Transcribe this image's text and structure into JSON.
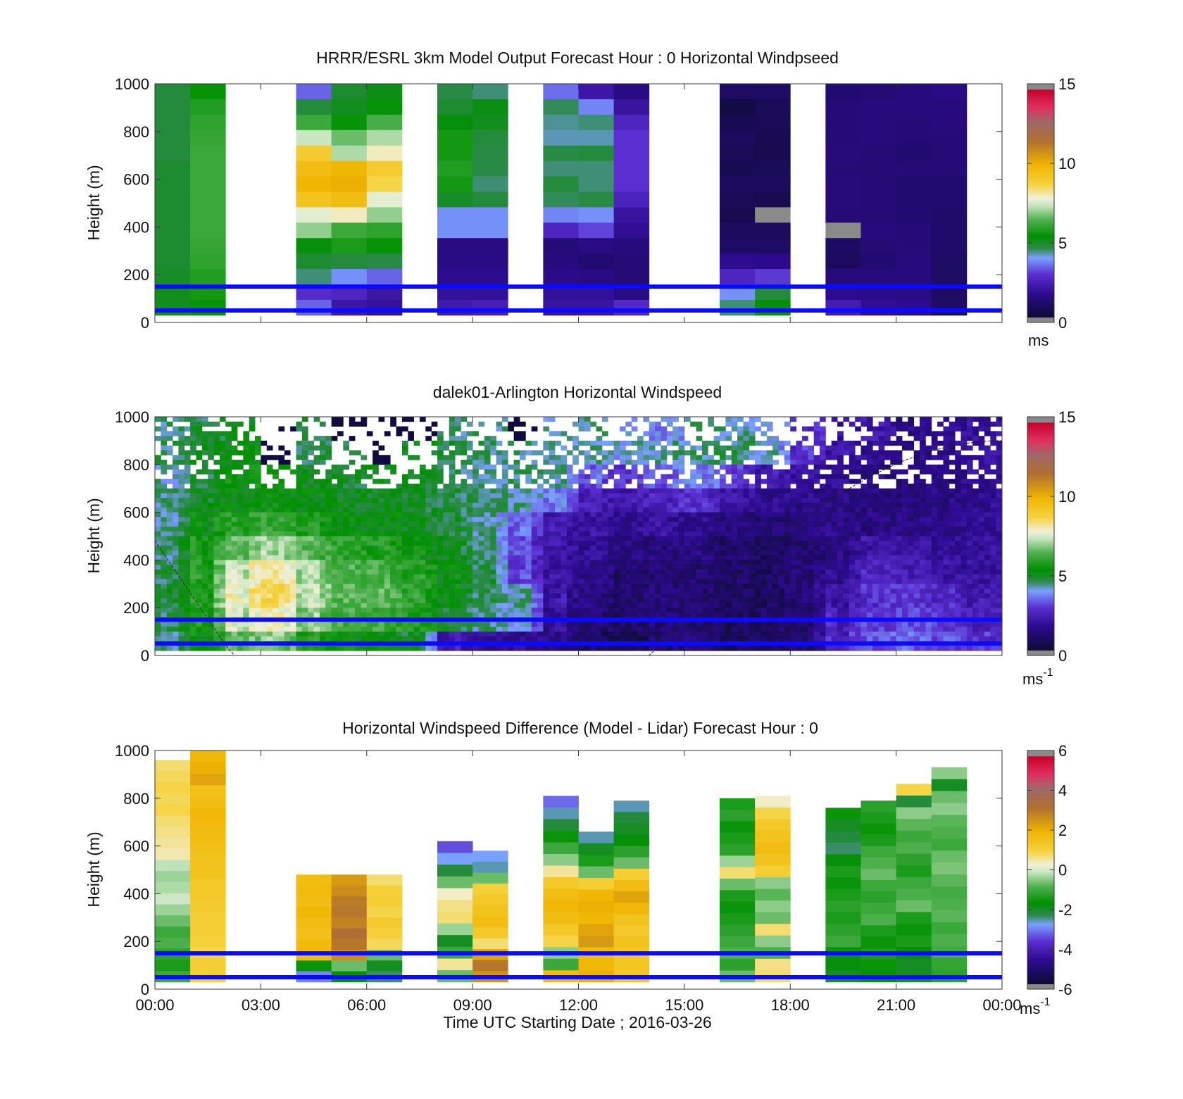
{
  "figure": {
    "x_tick_labels": [
      "00:00",
      "03:00",
      "06:00",
      "09:00",
      "12:00",
      "15:00",
      "18:00",
      "21:00",
      "00:00"
    ],
    "xlabel": "Time UTC  Starting Date ; 2016-03-26"
  },
  "chart_data": [
    {
      "type": "heatmap",
      "title": "HRRR/ESRL 3km Model Output   Forecast Hour : 0 Horizontal Windpseed",
      "ylabel": "Height (m)",
      "ylim": [
        0,
        1000
      ],
      "y_ticks": [
        "0",
        "200",
        "400",
        "600",
        "800",
        "1000"
      ],
      "xlim_hours": [
        0,
        24
      ],
      "colorbar": {
        "min": 0,
        "max": 15,
        "ticks": [
          "0",
          "5",
          "10",
          "15"
        ],
        "unit": "ms"
      },
      "reference_lines_m": [
        50,
        150
      ],
      "line_color": "#0a0aff",
      "columns": [
        {
          "t": 0,
          "top": 1000,
          "bottom": 30,
          "values": [
            4.5,
            4.5,
            4.5,
            4.5,
            4.5,
            4.6,
            4.6,
            4.6,
            4.6,
            4.6,
            4.6,
            4.6,
            4.7,
            4.8,
            4.8
          ]
        },
        {
          "t": 1,
          "top": 1000,
          "bottom": 30,
          "values": [
            5.2,
            5.6,
            5.8,
            5.9,
            6.0,
            6.0,
            6.0,
            6.0,
            6.0,
            6.0,
            5.9,
            5.8,
            5.6,
            5.4,
            5.2
          ]
        },
        {
          "t": 4,
          "top": 1000,
          "bottom": 30,
          "values": [
            3.2,
            4.5,
            6.0,
            7.2,
            8.8,
            9.5,
            9.8,
            9.2,
            7.5,
            6.8,
            5.0,
            4.6,
            4.2,
            2.6,
            3.2
          ]
        },
        {
          "t": 5,
          "top": 1000,
          "bottom": 30,
          "values": [
            4.6,
            4.8,
            5.2,
            6.5,
            7.0,
            9.8,
            10.0,
            9.5,
            7.8,
            6.0,
            5.5,
            4.5,
            3.6,
            2.4,
            1.9
          ]
        },
        {
          "t": 6,
          "top": 1000,
          "bottom": 30,
          "values": [
            4.9,
            5.2,
            6.2,
            7.0,
            7.8,
            8.8,
            8.5,
            7.5,
            6.8,
            5.8,
            5.2,
            4.4,
            3.2,
            1.9,
            1.7
          ]
        },
        {
          "t": 8,
          "top": 1000,
          "bottom": 30,
          "values": [
            4.4,
            4.6,
            5.0,
            5.4,
            5.4,
            5.6,
            5.4,
            4.7,
            3.6,
            3.6,
            1.3,
            1.3,
            1.5,
            1.7,
            2.0
          ]
        },
        {
          "t": 9,
          "top": 1000,
          "bottom": 30,
          "values": [
            4.2,
            4.9,
            4.8,
            4.5,
            4.4,
            4.4,
            4.2,
            4.5,
            3.6,
            3.6,
            1.3,
            1.3,
            1.5,
            1.7,
            2.2
          ]
        },
        {
          "t": 11,
          "top": 1000,
          "bottom": 30,
          "values": [
            3.3,
            4.3,
            4.1,
            4.0,
            4.4,
            4.2,
            4.5,
            4.3,
            3.5,
            2.4,
            1.1,
            1.2,
            1.4,
            1.7,
            1.8
          ]
        },
        {
          "t": 12,
          "top": 1000,
          "bottom": 30,
          "values": [
            1.9,
            3.5,
            4.2,
            4.0,
            4.5,
            4.2,
            4.2,
            4.4,
            3.6,
            2.9,
            1.3,
            1.0,
            1.3,
            1.7,
            1.8
          ]
        },
        {
          "t": 13,
          "top": 1000,
          "bottom": 30,
          "values": [
            1.3,
            1.8,
            2.4,
            2.7,
            2.7,
            2.7,
            2.7,
            2.3,
            1.8,
            1.6,
            1.2,
            1.1,
            1.1,
            1.3,
            2.5
          ]
        },
        {
          "t": 16,
          "top": 1000,
          "bottom": 30,
          "values": [
            0.8,
            0.3,
            0.5,
            0.7,
            0.6,
            0.5,
            0.7,
            0.6,
            0.5,
            0.7,
            0.8,
            1.5,
            2.4,
            3.6,
            4.2
          ]
        },
        {
          "t": 17,
          "top": 1000,
          "bottom": 30,
          "values": [
            0.8,
            0.6,
            0.6,
            0.5,
            0.5,
            0.6,
            0.7,
            0.5,
            -1,
            0.7,
            0.8,
            1.4,
            2.8,
            4.5,
            5.0
          ]
        },
        {
          "t": 19,
          "top": 1000,
          "bottom": 30,
          "values": [
            1.0,
            1.1,
            1.1,
            1.1,
            1.2,
            1.1,
            1.2,
            1.2,
            1.1,
            -1,
            0.8,
            0.7,
            1.2,
            1.5,
            2.1
          ]
        },
        {
          "t": 20,
          "top": 1000,
          "bottom": 30,
          "values": [
            1.1,
            1.2,
            1.2,
            1.2,
            1.1,
            1.1,
            1.1,
            1.1,
            1.1,
            1.2,
            1.1,
            1.0,
            1.2,
            1.4,
            1.6
          ]
        },
        {
          "t": 21,
          "top": 1000,
          "bottom": 30,
          "values": [
            1.2,
            1.2,
            1.1,
            1.1,
            1.0,
            1.1,
            1.0,
            1.0,
            1.0,
            1.1,
            1.1,
            1.2,
            1.2,
            1.3,
            1.5
          ]
        },
        {
          "t": 22,
          "top": 1000,
          "bottom": 30,
          "values": [
            1.3,
            1.2,
            1.2,
            1.1,
            1.1,
            1.1,
            1.0,
            1.0,
            0.9,
            0.9,
            0.9,
            0.8,
            0.8,
            0.8,
            0.8
          ]
        }
      ]
    },
    {
      "type": "heatmap",
      "title": "dalek01-Arlington  Horizontal Windspeed",
      "ylabel": "Height (m)",
      "ylim": [
        0,
        1000
      ],
      "y_ticks": [
        "0",
        "200",
        "400",
        "600",
        "800",
        "1000"
      ],
      "xlim_hours": [
        0,
        24
      ],
      "colorbar": {
        "min": 0,
        "max": 15,
        "ticks": [
          "0",
          "5",
          "10",
          "15"
        ],
        "unit": "ms",
        "unit_exponent": "-1"
      },
      "reference_lines_m": [
        50,
        150
      ],
      "line_color": "#0a0aff",
      "time_hours": [
        0,
        1,
        2,
        3,
        4,
        5,
        6,
        7,
        8,
        9,
        10,
        11,
        12,
        13,
        14,
        15,
        16,
        17,
        18,
        19,
        20,
        21,
        22,
        23
      ],
      "heights_m": [
        950,
        850,
        750,
        650,
        550,
        450,
        350,
        250,
        150,
        50
      ],
      "speed_grid": [
        [
          4.2,
          4.5,
          -9,
          -9,
          -9,
          -9,
          -9,
          -9,
          4.2,
          -9,
          -9,
          -9,
          -9,
          -9,
          3.5,
          -9,
          4.0,
          -9,
          -9,
          -9,
          2.0,
          1.2,
          1.5,
          1.8
        ],
        [
          4.3,
          4.8,
          5.0,
          -9,
          4.5,
          -9,
          -9,
          -9,
          4.5,
          4.2,
          -9,
          4.0,
          4.2,
          3.8,
          4.0,
          4.2,
          4.3,
          3.8,
          2.5,
          1.8,
          1.5,
          1.2,
          1.4,
          1.8
        ],
        [
          4.0,
          4.6,
          5.2,
          -9,
          4.8,
          4.6,
          -9,
          4.8,
          4.4,
          4.0,
          4.2,
          4.0,
          2.8,
          2.6,
          3.2,
          3.5,
          2.8,
          2.0,
          1.7,
          1.5,
          1.3,
          1.1,
          1.3,
          1.6
        ],
        [
          4.2,
          4.8,
          5.0,
          5.2,
          5.0,
          4.8,
          4.8,
          4.6,
          4.5,
          4.2,
          4.0,
          3.4,
          2.2,
          2.0,
          2.4,
          2.6,
          1.8,
          1.5,
          1.4,
          1.3,
          1.2,
          1.2,
          1.3,
          1.5
        ],
        [
          4.0,
          5.2,
          5.8,
          6.0,
          5.5,
          5.0,
          5.0,
          4.8,
          4.6,
          4.0,
          3.2,
          2.0,
          1.8,
          1.5,
          1.8,
          1.4,
          1.2,
          1.0,
          1.2,
          1.4,
          1.2,
          1.3,
          1.4,
          1.6
        ],
        [
          4.2,
          5.6,
          6.5,
          7.0,
          6.2,
          5.8,
          5.6,
          5.2,
          4.8,
          4.2,
          2.8,
          1.8,
          1.6,
          1.2,
          1.2,
          1.2,
          0.9,
          0.8,
          1.0,
          1.3,
          2.0,
          1.8,
          1.6,
          1.7
        ],
        [
          4.4,
          5.8,
          7.5,
          8.2,
          6.8,
          6.0,
          6.2,
          5.6,
          5.0,
          4.4,
          2.6,
          1.8,
          1.4,
          0.9,
          1.0,
          1.0,
          0.8,
          0.8,
          1.2,
          1.6,
          2.4,
          2.2,
          1.8,
          1.8
        ],
        [
          4.6,
          5.8,
          8.0,
          8.5,
          7.0,
          6.2,
          6.4,
          5.8,
          5.0,
          4.2,
          4.0,
          1.5,
          1.2,
          0.9,
          1.2,
          1.0,
          0.7,
          0.7,
          1.1,
          2.0,
          2.6,
          2.8,
          2.4,
          2.0
        ],
        [
          4.4,
          5.6,
          7.5,
          7.8,
          6.6,
          6.0,
          6.0,
          5.5,
          4.6,
          4.0,
          3.8,
          1.4,
          1.0,
          0.8,
          1.1,
          1.0,
          0.7,
          0.8,
          1.0,
          2.4,
          2.8,
          3.0,
          2.7,
          2.2
        ],
        [
          4.2,
          5.2,
          6.5,
          6.8,
          5.5,
          5.2,
          5.0,
          4.6,
          1.8,
          1.6,
          1.5,
          1.4,
          0.8,
          0.5,
          1.0,
          1.2,
          0.6,
          0.8,
          1.0,
          2.6,
          3.0,
          3.2,
          3.0,
          2.6
        ]
      ]
    },
    {
      "type": "heatmap",
      "title": "Horizontal Windspeed Difference (Model - Lidar) Forecast Hour : 0",
      "ylabel": "Height (m)",
      "ylim": [
        0,
        1000
      ],
      "y_ticks": [
        "0",
        "200",
        "400",
        "600",
        "800",
        "1000"
      ],
      "xlim_hours": [
        0,
        24
      ],
      "colorbar": {
        "min": -6,
        "max": 6,
        "ticks": [
          "-6",
          "-4",
          "-2",
          "0",
          "2",
          "4",
          "6"
        ],
        "unit": "ms",
        "unit_exponent": "-1"
      },
      "reference_lines_m": [
        50,
        150
      ],
      "line_color": "#0a0aff",
      "columns": [
        {
          "t": 0,
          "top": 960,
          "bottom": 30,
          "values": [
            0.6,
            0.7,
            0.8,
            0.7,
            0.8,
            0.6,
            0.5,
            0.4,
            0.3,
            -0.3,
            -0.5,
            -0.4,
            -0.2,
            -0.5,
            -0.8,
            -1.2,
            -1.0,
            -1.4,
            -1.6,
            -1.2
          ]
        },
        {
          "t": 1,
          "top": 1000,
          "bottom": 30,
          "values": [
            1.8,
            2.0,
            2.2,
            1.5,
            1.6,
            1.8,
            1.7,
            1.6,
            1.5,
            1.4,
            1.4,
            1.2,
            1.2,
            1.1,
            1.0,
            1.0,
            0.9,
            0.8,
            1.0,
            0.9
          ]
        },
        {
          "t": 4,
          "top": 480,
          "bottom": 30,
          "values": [
            1.6,
            1.7,
            1.6,
            1.8,
            1.6,
            1.5,
            1.7,
            1.6,
            -1.8,
            -3.2
          ]
        },
        {
          "t": 5,
          "top": 480,
          "bottom": 30,
          "values": [
            2.4,
            2.6,
            2.9,
            3.0,
            2.8,
            3.2,
            3.0,
            2.6,
            -0.8,
            -2.0
          ]
        },
        {
          "t": 6,
          "top": 480,
          "bottom": 30,
          "values": [
            0.6,
            0.9,
            1.0,
            0.8,
            1.1,
            0.9,
            0.7,
            -0.8,
            -2.2,
            -2.6
          ]
        },
        {
          "t": 8,
          "top": 620,
          "bottom": 30,
          "values": [
            -3.6,
            -3.0,
            -2.4,
            -0.8,
            0.2,
            0.5,
            0.6,
            -0.5,
            -2.2,
            -1.2,
            0.4,
            -0.8
          ]
        },
        {
          "t": 9,
          "top": 580,
          "bottom": 30,
          "values": [
            -3.0,
            -2.8,
            -0.8,
            0.9,
            1.2,
            1.4,
            1.6,
            1.2,
            0.6,
            2.2,
            3.0,
            2.5
          ]
        },
        {
          "t": 11,
          "top": 810,
          "bottom": 30,
          "values": [
            -3.4,
            -2.8,
            -2.4,
            -1.8,
            -1.2,
            -0.6,
            0.4,
            1.2,
            1.6,
            1.8,
            1.6,
            1.2,
            0.8,
            -0.6,
            -1.2,
            1.6
          ]
        },
        {
          "t": 12,
          "top": 660,
          "bottom": 30,
          "values": [
            -2.8,
            -2.2,
            -1.6,
            -0.8,
            1.0,
            1.8,
            2.0,
            1.8,
            2.2,
            2.4,
            1.6,
            1.8,
            2.0
          ]
        },
        {
          "t": 13,
          "top": 790,
          "bottom": 30,
          "values": [
            -2.8,
            -2.4,
            -2.2,
            -2.0,
            -1.4,
            -0.8,
            1.0,
            1.6,
            2.2,
            1.8,
            1.4,
            1.2,
            1.4,
            1.2,
            1.3,
            1.2
          ]
        },
        {
          "t": 16,
          "top": 800,
          "bottom": 30,
          "values": [
            -1.6,
            -1.4,
            -1.8,
            -1.6,
            -1.4,
            -0.5,
            0.6,
            -0.8,
            -1.6,
            -1.8,
            -1.6,
            -1.4,
            -1.2,
            -1.0,
            -1.4,
            -0.8
          ]
        },
        {
          "t": 17,
          "top": 810,
          "bottom": 30,
          "values": [
            0.2,
            0.8,
            1.2,
            1.4,
            1.6,
            1.4,
            1.0,
            -0.6,
            -0.9,
            -0.6,
            -0.8,
            0.6,
            -0.6,
            -1.0,
            0.5,
            0.6
          ]
        },
        {
          "t": 19,
          "top": 760,
          "bottom": 30,
          "values": [
            -1.8,
            -2.2,
            -2.4,
            -2.6,
            -2.0,
            -1.6,
            -1.8,
            -1.6,
            -1.4,
            -1.6,
            -1.4,
            -1.2,
            -1.8,
            -2.0,
            -2.2
          ]
        },
        {
          "t": 20,
          "top": 790,
          "bottom": 30,
          "values": [
            -1.4,
            -1.6,
            -1.8,
            -1.6,
            -1.2,
            -1.0,
            -0.8,
            -1.2,
            -1.4,
            -1.2,
            -1.0,
            -1.6,
            -1.8,
            -1.6,
            -1.8,
            -2.0
          ]
        },
        {
          "t": 21,
          "top": 860,
          "bottom": 30,
          "values": [
            0.8,
            -2.4,
            -0.6,
            -0.9,
            -1.2,
            -1.0,
            -1.4,
            -1.6,
            -1.2,
            -1.0,
            -0.8,
            -1.6,
            -1.8,
            -1.6,
            -2.0,
            -2.2,
            -2.2
          ]
        },
        {
          "t": 22,
          "top": 930,
          "bottom": 30,
          "values": [
            -0.6,
            -2.2,
            -0.8,
            -0.6,
            -0.9,
            -1.0,
            -1.2,
            -0.8,
            -0.7,
            -0.9,
            -1.1,
            -1.0,
            -0.9,
            -1.2,
            -1.0,
            -1.1,
            -1.3,
            -1.4
          ]
        }
      ]
    }
  ]
}
